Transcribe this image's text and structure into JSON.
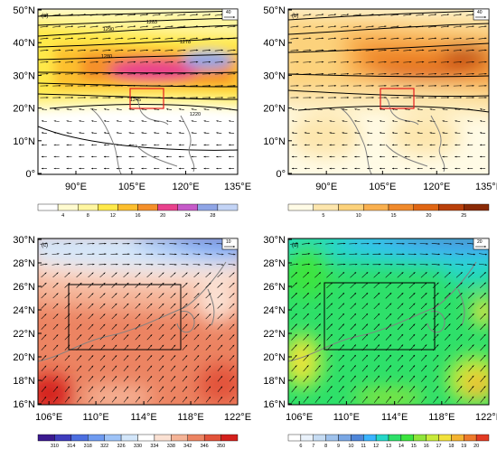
{
  "chart_data": [
    {
      "type": "heatmap",
      "panel_label": "(a)",
      "reference_vector": "40",
      "y_ticks": [
        "50°N",
        "40°N",
        "30°N",
        "20°N",
        "10°N",
        "0°"
      ],
      "x_ticks": [
        "90°E",
        "105°E",
        "120°E",
        "135°E"
      ],
      "colorbar": {
        "labels": [
          "4",
          "8",
          "12",
          "16",
          "20",
          "24",
          "28"
        ],
        "colors": [
          "#ffffff",
          "#fffbd0",
          "#fff6a0",
          "#ffe94a",
          "#fdbf2e",
          "#f5902a",
          "#e9428d",
          "#c65bc9",
          "#8fa5e6",
          "#c3d4f6"
        ]
      },
      "contour_labels": [
        "1290",
        "1283",
        "1278",
        "1280",
        "1245",
        "1220"
      ],
      "box_color": "#e41a1c"
    },
    {
      "type": "heatmap",
      "panel_label": "(b)",
      "reference_vector": "40",
      "y_ticks": [
        "50°N",
        "40°N",
        "30°N",
        "20°N",
        "10°N",
        "0°"
      ],
      "x_ticks": [
        "90°E",
        "105°E",
        "120°E",
        "135°E"
      ],
      "colorbar": {
        "labels": [
          "5",
          "10",
          "15",
          "20",
          "25"
        ],
        "colors": [
          "#fffbe6",
          "#fde6ad",
          "#fcd27b",
          "#f9b04f",
          "#f08a2c",
          "#e06614",
          "#b9400b",
          "#8a2a06"
        ]
      },
      "box_color": "#e41a1c"
    },
    {
      "type": "heatmap",
      "panel_label": "(c)",
      "reference_vector": "10",
      "y_ticks": [
        "30°N",
        "28°N",
        "26°N",
        "24°N",
        "22°N",
        "20°N",
        "18°N",
        "16°N"
      ],
      "x_ticks": [
        "106°E",
        "110°E",
        "114°E",
        "118°E",
        "122°E"
      ],
      "colorbar": {
        "labels": [
          "310",
          "314",
          "318",
          "322",
          "326",
          "330",
          "334",
          "338",
          "342",
          "346",
          "350"
        ],
        "colors": [
          "#3b1a8f",
          "#3f3dbd",
          "#4c6fe0",
          "#6f9bf0",
          "#9ec3f7",
          "#d3e6fa",
          "#ffffff",
          "#fbe1d3",
          "#f5b497",
          "#ec8462",
          "#e2533a",
          "#d4201c"
        ]
      },
      "box_color": "#000000"
    },
    {
      "type": "heatmap",
      "panel_label": "(d)",
      "reference_vector": "20",
      "y_ticks": [
        "30°N",
        "28°N",
        "26°N",
        "24°N",
        "22°N",
        "20°N",
        "18°N",
        "16°N"
      ],
      "x_ticks": [
        "106°E",
        "110°E",
        "114°E",
        "118°E",
        "122°E"
      ],
      "colorbar": {
        "labels": [
          "6",
          "7",
          "8",
          "9",
          "10",
          "11",
          "12",
          "13",
          "14",
          "15",
          "16",
          "17",
          "18",
          "19",
          "20"
        ],
        "colors": [
          "#ffffff",
          "#eaf2fb",
          "#c6dcf3",
          "#9fc2ec",
          "#7aa7e4",
          "#4f86d9",
          "#3bb4ff",
          "#25d7c8",
          "#2ee06a",
          "#3ce43f",
          "#8fe53a",
          "#c8ea3a",
          "#f2e23c",
          "#f4b331",
          "#ee7a2b",
          "#e23a23"
        ]
      },
      "box_color": "#000000"
    }
  ]
}
